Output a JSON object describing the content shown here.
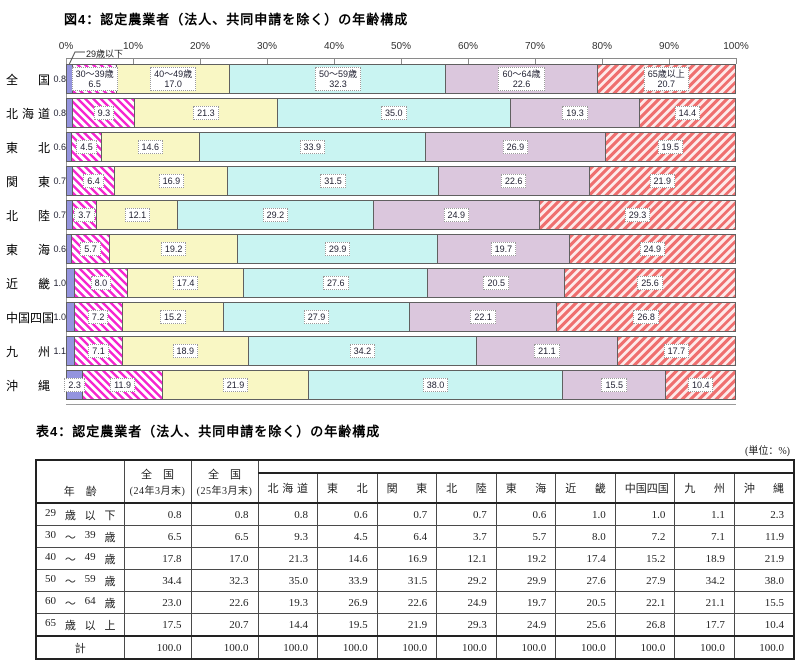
{
  "figure": {
    "title": "図4：認定農業者（法人、共同申請を除く）の年齢構成",
    "callout_label": "29歳以下",
    "axis_ticks": [
      "0%",
      "10%",
      "20%",
      "30%",
      "40%",
      "50%",
      "60%",
      "70%",
      "80%",
      "90%",
      "100%"
    ],
    "segment_names_row": 0,
    "first_value_inside_row": 9,
    "colors": {
      "under29": "#9494de",
      "stripe30": "#f626d0",
      "age40": "#f9f7c4",
      "age50": "#c9f4f2",
      "age60": "#dbc7dd",
      "stripe65": "#ef6f6f"
    }
  },
  "chart_data": {
    "type": "bar",
    "stacked": true,
    "orientation": "horizontal",
    "title": "図4：認定農業者（法人、共同申請を除く）の年齢構成",
    "unit": "%",
    "xlim": [
      0,
      100
    ],
    "x_tick_interval": 10,
    "categories": [
      "全国",
      "北海道",
      "東北",
      "関東",
      "北陸",
      "東海",
      "近畿",
      "中国四国",
      "九州",
      "沖縄"
    ],
    "series": [
      {
        "name": "29歳以下",
        "values": [
          0.8,
          0.8,
          0.6,
          0.7,
          0.7,
          0.6,
          1.0,
          1.0,
          1.1,
          2.3
        ]
      },
      {
        "name": "30～39歳",
        "values": [
          6.5,
          9.3,
          4.5,
          6.4,
          3.7,
          5.7,
          8.0,
          7.2,
          7.1,
          11.9
        ]
      },
      {
        "name": "40～49歳",
        "values": [
          17.0,
          21.3,
          14.6,
          16.9,
          12.1,
          19.2,
          17.4,
          15.2,
          18.9,
          21.9
        ]
      },
      {
        "name": "50～59歳",
        "values": [
          32.3,
          35.0,
          33.9,
          31.5,
          29.2,
          29.9,
          27.6,
          27.9,
          34.2,
          38.0
        ]
      },
      {
        "name": "60～64歳",
        "values": [
          22.6,
          19.3,
          26.9,
          22.6,
          24.9,
          19.7,
          20.5,
          22.1,
          21.1,
          15.5
        ]
      },
      {
        "name": "65歳以上",
        "values": [
          20.7,
          14.4,
          19.5,
          21.9,
          29.3,
          24.9,
          25.6,
          26.8,
          17.7,
          10.4
        ]
      }
    ]
  },
  "table": {
    "title": "表4：認定農業者（法人、共同申請を除く）の年齢構成",
    "unit": "(単位：%)",
    "header": {
      "age": "年　齢",
      "national24_line1": "全　国",
      "national24_line2": "(24年3月末)",
      "national25_line1": "全　国",
      "national25_line2": "(25年3月末)",
      "regions": [
        "北海道",
        "東北",
        "関東",
        "北陸",
        "東海",
        "近畿",
        "中国四国",
        "九州",
        "沖縄"
      ]
    },
    "rows": [
      {
        "label": "29 歳 以 下",
        "values": [
          0.8,
          0.8,
          0.8,
          0.6,
          0.7,
          0.7,
          0.6,
          1.0,
          1.0,
          1.1,
          2.3
        ]
      },
      {
        "label": "30 ～ 39 歳",
        "values": [
          6.5,
          6.5,
          9.3,
          4.5,
          6.4,
          3.7,
          5.7,
          8.0,
          7.2,
          7.1,
          11.9
        ]
      },
      {
        "label": "40 ～ 49 歳",
        "values": [
          17.8,
          17.0,
          21.3,
          14.6,
          16.9,
          12.1,
          19.2,
          17.4,
          15.2,
          18.9,
          21.9
        ]
      },
      {
        "label": "50 ～ 59 歳",
        "values": [
          34.4,
          32.3,
          35.0,
          33.9,
          31.5,
          29.2,
          29.9,
          27.6,
          27.9,
          34.2,
          38.0
        ]
      },
      {
        "label": "60 ～ 64 歳",
        "values": [
          23.0,
          22.6,
          19.3,
          26.9,
          22.6,
          24.9,
          19.7,
          20.5,
          22.1,
          21.1,
          15.5
        ]
      },
      {
        "label": "65 歳 以 上",
        "values": [
          17.5,
          20.7,
          14.4,
          19.5,
          21.9,
          29.3,
          24.9,
          25.6,
          26.8,
          17.7,
          10.4
        ]
      },
      {
        "label": "計",
        "values": [
          100.0,
          100.0,
          100.0,
          100.0,
          100.0,
          100.0,
          100.0,
          100.0,
          100.0,
          100.0,
          100.0
        ],
        "total": true
      }
    ]
  }
}
